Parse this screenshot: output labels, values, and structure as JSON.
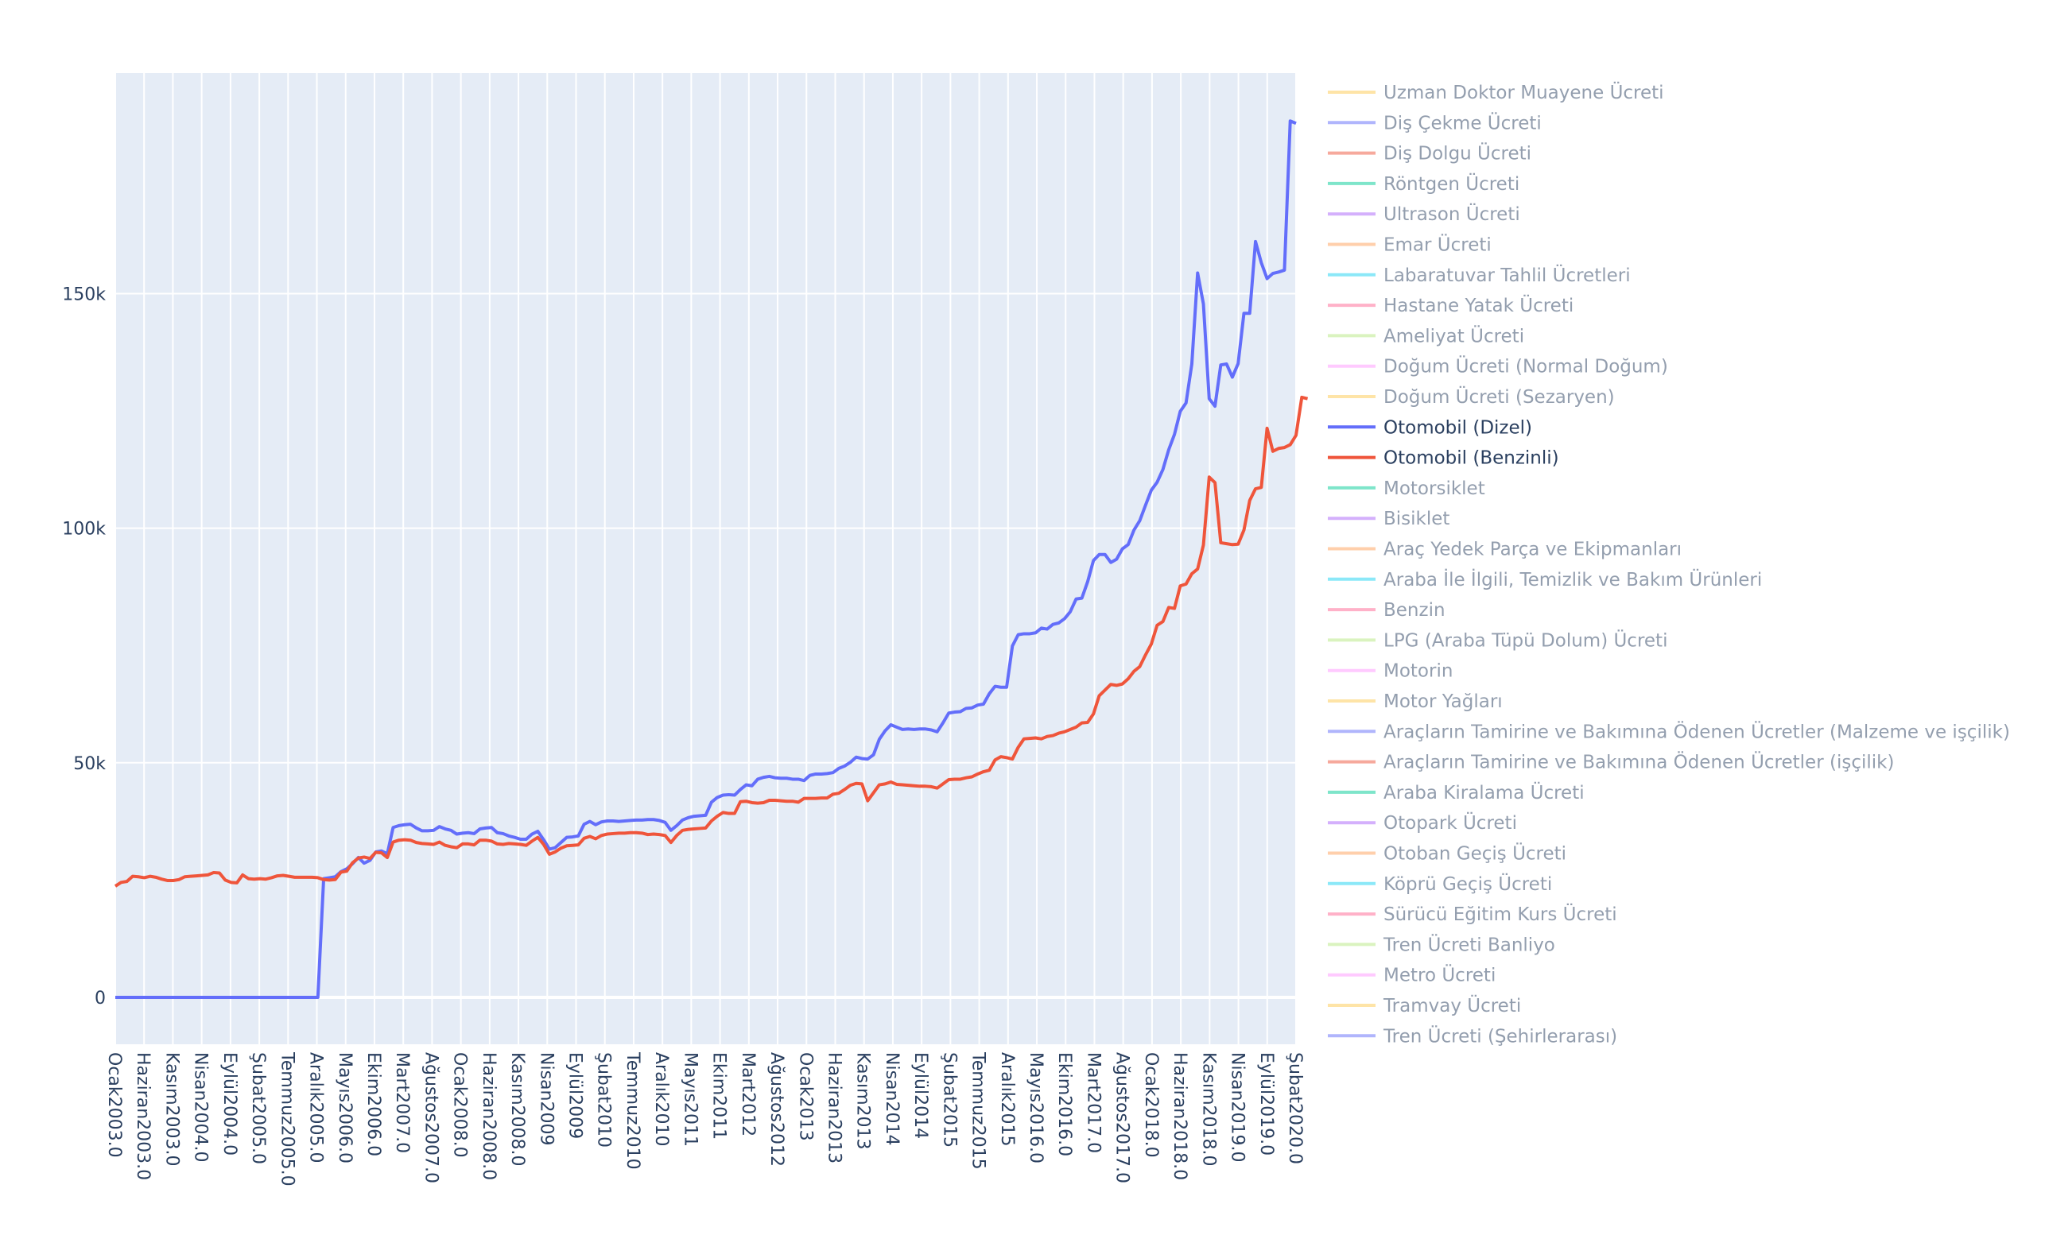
{
  "chart_data": {
    "type": "line",
    "y_ticks": [
      0,
      50000,
      100000,
      150000
    ],
    "y_tick_labels": [
      "0",
      "50k",
      "100k",
      "150k"
    ],
    "ylim": [
      -10000,
      197000
    ],
    "grid": true,
    "legend_position": "right",
    "x_tick_labels": [
      "Ocak2003.0",
      "Haziran2003.0",
      "Kasım2003.0",
      "Nisan2004.0",
      "Eylül2004.0",
      "Şubat2005.0",
      "Temmuz2005.0",
      "Aralık2005.0",
      "Mayıs2006.0",
      "Ekim2006.0",
      "Mart2007.0",
      "Ağustos2007.0",
      "Ocak2008.0",
      "Haziran2008.0",
      "Kasım2008.0",
      "Nisan2009",
      "Eylül2009",
      "Şubat2010",
      "Temmuz2010",
      "Aralık2010",
      "Mayıs2011",
      "Ekim2011",
      "Mart2012",
      "Ağustos2012",
      "Ocak2013",
      "Haziran2013",
      "Kasım2013",
      "Nisan2014",
      "Eylül2014",
      "Şubat2015",
      "Temmuz2015",
      "Aralık2015",
      "Mayıs2016.0",
      "Ekim2016.0",
      "Mart2017.0",
      "Ağustos2017.0",
      "Ocak2018.0",
      "Haziran2018.0",
      "Kasım2018.0",
      "Nisan2019.0",
      "Eylül2019.0",
      "Şubat2020.0"
    ],
    "series": [
      {
        "name": "Uzman Doktor Muayene Ücreti",
        "color": "#FECB52",
        "visible": false
      },
      {
        "name": "Diş Çekme Ücreti",
        "color": "#636EFA",
        "visible": false
      },
      {
        "name": "Diş Dolgu Ücreti",
        "color": "#EF553B",
        "visible": false
      },
      {
        "name": "Röntgen Ücreti",
        "color": "#00CC96",
        "visible": false
      },
      {
        "name": "Ultrason Ücreti",
        "color": "#AB63FA",
        "visible": false
      },
      {
        "name": "Emar Ücreti",
        "color": "#FFA15A",
        "visible": false
      },
      {
        "name": "Labaratuvar Tahlil Ücretleri",
        "color": "#19D3F3",
        "visible": false
      },
      {
        "name": "Hastane Yatak Ücreti",
        "color": "#FF6692",
        "visible": false
      },
      {
        "name": "Ameliyat Ücreti",
        "color": "#B6E880",
        "visible": false
      },
      {
        "name": "Doğum Ücreti (Normal Doğum)",
        "color": "#FF97FF",
        "visible": false
      },
      {
        "name": "Doğum Ücreti (Sezaryen)",
        "color": "#FECB52",
        "visible": false
      },
      {
        "name": "Otomobil (Dizel)",
        "color": "#636EFA",
        "visible": true,
        "values": [
          0,
          0,
          0,
          0,
          0,
          0,
          0,
          0,
          0,
          0,
          0,
          0,
          0,
          0,
          0,
          0,
          0,
          0,
          0,
          0,
          0,
          0,
          0,
          0,
          0,
          0,
          0,
          0,
          0,
          0,
          0,
          0,
          0,
          0,
          0,
          0,
          25300,
          25500,
          25700,
          26800,
          27400,
          28500,
          29800,
          28600,
          29200,
          31000,
          31200,
          30600,
          36200,
          36600,
          36800,
          36900,
          36100,
          35500,
          35500,
          35600,
          36400,
          35900,
          35600,
          34800,
          35000,
          35100,
          34900,
          35900,
          36100,
          36200,
          35100,
          34900,
          34400,
          34100,
          33700,
          33700,
          34800,
          35400,
          33600,
          31600,
          31900,
          33000,
          34100,
          34200,
          34400,
          36900,
          37500,
          36800,
          37400,
          37600,
          37600,
          37500,
          37600,
          37700,
          37800,
          37800,
          37900,
          37900,
          37700,
          37300,
          35600,
          36600,
          37800,
          38300,
          38600,
          38700,
          38800,
          41600,
          42600,
          43100,
          43200,
          43100,
          44300,
          45300,
          45100,
          46500,
          46900,
          47100,
          46800,
          46700,
          46700,
          46500,
          46500,
          46200,
          47300,
          47600,
          47600,
          47700,
          47900,
          48800,
          49300,
          50100,
          51200,
          50900,
          50800,
          51700,
          55000,
          56800,
          58100,
          57600,
          57100,
          57200,
          57100,
          57200,
          57200,
          57000,
          56600,
          58500,
          60600,
          60800,
          60900,
          61600,
          61700,
          62300,
          62500,
          64700,
          66300,
          66100,
          66100,
          74900,
          77300,
          77500,
          77500,
          77700,
          78700,
          78500,
          79500,
          79800,
          80700,
          82200,
          84900,
          85100,
          88600,
          93100,
          94400,
          94400,
          92700,
          93400,
          95600,
          96500,
          99600,
          101600,
          104900,
          108100,
          109800,
          112500,
          116700,
          120000,
          124900,
          126700,
          135000,
          154400,
          147800,
          127600,
          126000,
          134800,
          135000,
          132200,
          135100,
          145800,
          145800,
          161100,
          156600,
          153200,
          154300,
          154600,
          155000,
          186800,
          186300
        ]
      },
      {
        "name": "Otomobil (Benzinli)",
        "color": "#EF553B",
        "visible": true,
        "values": [
          23700,
          24500,
          24700,
          25800,
          25700,
          25500,
          25800,
          25600,
          25200,
          24900,
          24900,
          25100,
          25700,
          25800,
          25900,
          26000,
          26100,
          26600,
          26500,
          25000,
          24500,
          24400,
          26100,
          25300,
          25200,
          25300,
          25200,
          25500,
          25900,
          26000,
          25800,
          25600,
          25600,
          25600,
          25600,
          25500,
          25100,
          25000,
          25100,
          26700,
          26900,
          28700,
          29700,
          29900,
          29600,
          30900,
          30800,
          29800,
          33100,
          33500,
          33600,
          33500,
          33000,
          32800,
          32700,
          32600,
          33100,
          32400,
          32100,
          31900,
          32700,
          32700,
          32500,
          33500,
          33500,
          33300,
          32700,
          32600,
          32800,
          32700,
          32600,
          32400,
          33300,
          34100,
          32600,
          30500,
          31000,
          31800,
          32300,
          32400,
          32500,
          33900,
          34300,
          33800,
          34500,
          34800,
          34900,
          35000,
          35000,
          35100,
          35100,
          35000,
          34700,
          34800,
          34700,
          34500,
          33000,
          34500,
          35600,
          35800,
          35900,
          36000,
          36100,
          37600,
          38600,
          39400,
          39200,
          39200,
          41700,
          41800,
          41500,
          41400,
          41500,
          42000,
          42000,
          41900,
          41800,
          41800,
          41600,
          42400,
          42400,
          42400,
          42500,
          42500,
          43300,
          43500,
          44300,
          45200,
          45600,
          45500,
          41900,
          43600,
          45300,
          45500,
          45900,
          45400,
          45300,
          45200,
          45100,
          45000,
          45000,
          44900,
          44600,
          45500,
          46400,
          46500,
          46500,
          46800,
          47000,
          47600,
          48100,
          48400,
          50600,
          51300,
          51100,
          50800,
          53300,
          55100,
          55200,
          55300,
          55100,
          55600,
          55800,
          56300,
          56600,
          57100,
          57600,
          58500,
          58600,
          60400,
          64300,
          65500,
          66700,
          66500,
          66800,
          67900,
          69500,
          70500,
          73000,
          75300,
          79300,
          80100,
          83100,
          82900,
          87700,
          88100,
          90300,
          91300,
          96400,
          110900,
          109700,
          96900,
          96700,
          96500,
          96600,
          99600,
          105900,
          108400,
          108700,
          121300,
          116400,
          117000,
          117200,
          117800,
          119800,
          127900,
          127600
        ]
      },
      {
        "name": "Motorsiklet",
        "color": "#00CC96",
        "visible": false
      },
      {
        "name": "Bisiklet",
        "color": "#AB63FA",
        "visible": false
      },
      {
        "name": "Araç Yedek Parça ve Ekipmanları",
        "color": "#FFA15A",
        "visible": false
      },
      {
        "name": "Araba İle İlgili, Temizlik ve Bakım Ürünleri",
        "color": "#19D3F3",
        "visible": false
      },
      {
        "name": "Benzin",
        "color": "#FF6692",
        "visible": false
      },
      {
        "name": "LPG (Araba Tüpü Dolum)  Ücreti",
        "color": "#B6E880",
        "visible": false
      },
      {
        "name": "Motorin",
        "color": "#FF97FF",
        "visible": false
      },
      {
        "name": "Motor Yağları",
        "color": "#FECB52",
        "visible": false
      },
      {
        "name": "Araçların  Tamirine ve Bakımına Ödenen Ücretler (Malzeme ve işçilik)",
        "color": "#636EFA",
        "visible": false
      },
      {
        "name": "Araçların  Tamirine ve Bakımına Ödenen Ücretler (işçilik)",
        "color": "#EF553B",
        "visible": false
      },
      {
        "name": "Araba Kiralama Ücreti",
        "color": "#00CC96",
        "visible": false
      },
      {
        "name": "Otopark Ücreti",
        "color": "#AB63FA",
        "visible": false
      },
      {
        "name": "Otoban Geçiş Ücreti",
        "color": "#FFA15A",
        "visible": false
      },
      {
        "name": "Köprü Geçiş Ücreti",
        "color": "#19D3F3",
        "visible": false
      },
      {
        "name": "Sürücü Eğitim Kurs Ücreti",
        "color": "#FF6692",
        "visible": false
      },
      {
        "name": "Tren Ücreti Banliyo",
        "color": "#B6E880",
        "visible": false
      },
      {
        "name": "Metro Ücreti",
        "color": "#FF97FF",
        "visible": false
      },
      {
        "name": "Tramvay Ücreti",
        "color": "#FECB52",
        "visible": false
      },
      {
        "name": "Tren Ücreti (Şehirlerarası)",
        "color": "#636EFA",
        "visible": false
      }
    ]
  }
}
